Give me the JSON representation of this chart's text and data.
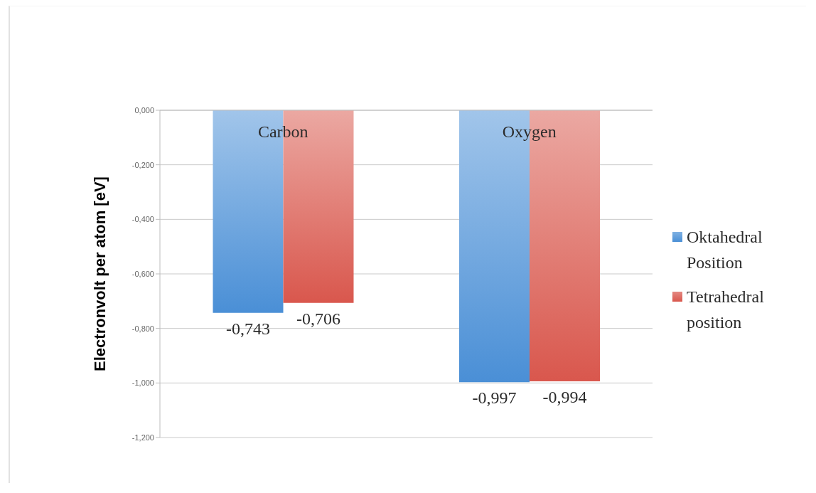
{
  "chart_data": {
    "type": "bar",
    "categories": [
      "Carbon",
      "Oxygen"
    ],
    "ylabel": "Electronvolt per atom [eV]",
    "series": [
      {
        "name": "Oktahedral Position",
        "color": "#4a8fd6",
        "values": [
          -0.743,
          -0.997
        ],
        "value_labels": [
          "-0,743",
          "-0,997"
        ]
      },
      {
        "name": "Tetrahedral position",
        "color": "#d9574d",
        "values": [
          -0.706,
          -0.994
        ],
        "value_labels": [
          "-0,706",
          "-0,994"
        ]
      }
    ],
    "ylim": [
      -1.2,
      0
    ],
    "yticks": [
      {
        "value": 0,
        "label": "0,000"
      },
      {
        "value": -0.2,
        "label": "-0,200"
      },
      {
        "value": -0.4,
        "label": "-0,400"
      },
      {
        "value": -0.6,
        "label": "-0,600"
      },
      {
        "value": -0.8,
        "label": "-0,800"
      },
      {
        "value": -1,
        "label": "-1,000"
      },
      {
        "value": -1.2,
        "label": "-1,200"
      }
    ],
    "grid": "y",
    "legend": "right"
  }
}
